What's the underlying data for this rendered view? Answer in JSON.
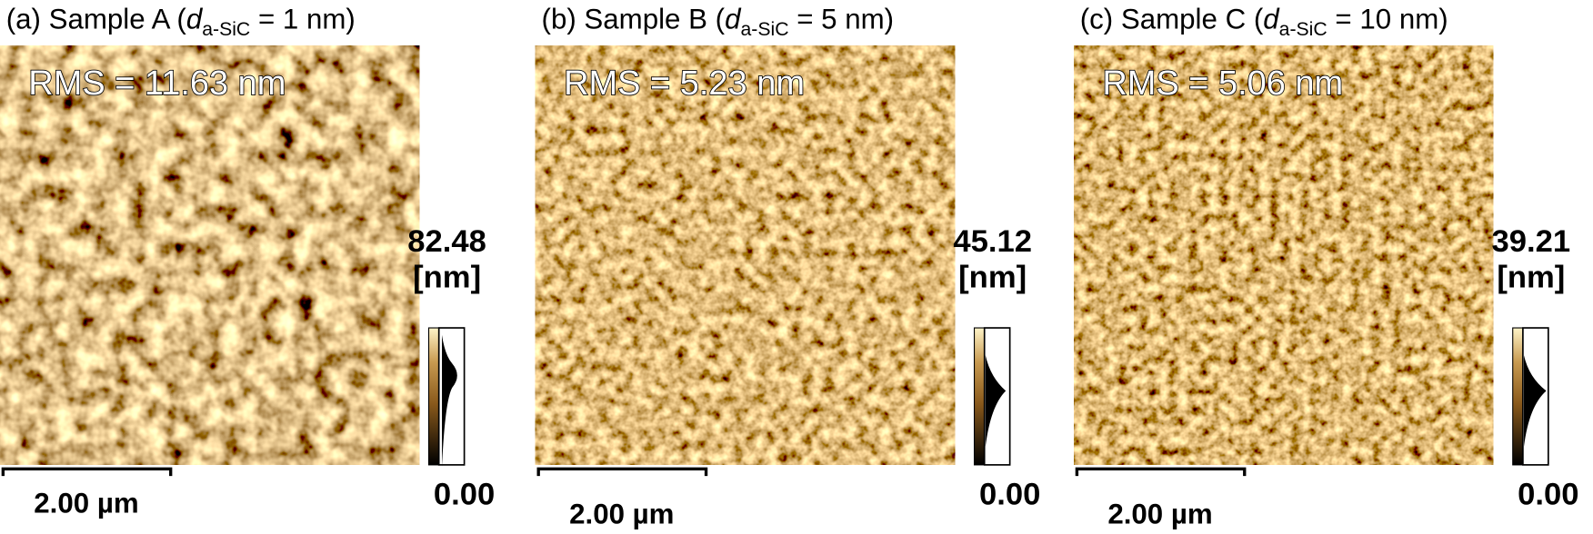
{
  "panels": [
    {
      "title": {
        "prefix": "(a) Sample A (",
        "var": "d",
        "sub": "a-SiC",
        "suffix": " = 1 nm)"
      },
      "rms": "RMS = 11.63 nm",
      "colorbar": {
        "max": "82.48",
        "unit": "[nm]",
        "min": "0.00"
      },
      "scale_bar": "2.00 µm"
    },
    {
      "title": {
        "prefix": "(b) Sample B (",
        "var": "d",
        "sub": "a-SiC",
        "suffix": " = 5 nm)"
      },
      "rms": "RMS = 5.23 nm",
      "colorbar": {
        "max": "45.12",
        "unit": "[nm]",
        "min": "0.00"
      },
      "scale_bar": "2.00 µm"
    },
    {
      "title": {
        "prefix": "(c) Sample C (",
        "var": "d",
        "sub": "a-SiC",
        "suffix": " = 10 nm)"
      },
      "rms": "RMS = 5.06 nm",
      "colorbar": {
        "max": "39.21",
        "unit": "[nm]",
        "min": "0.00"
      },
      "scale_bar": "2.00 µm"
    }
  ]
}
